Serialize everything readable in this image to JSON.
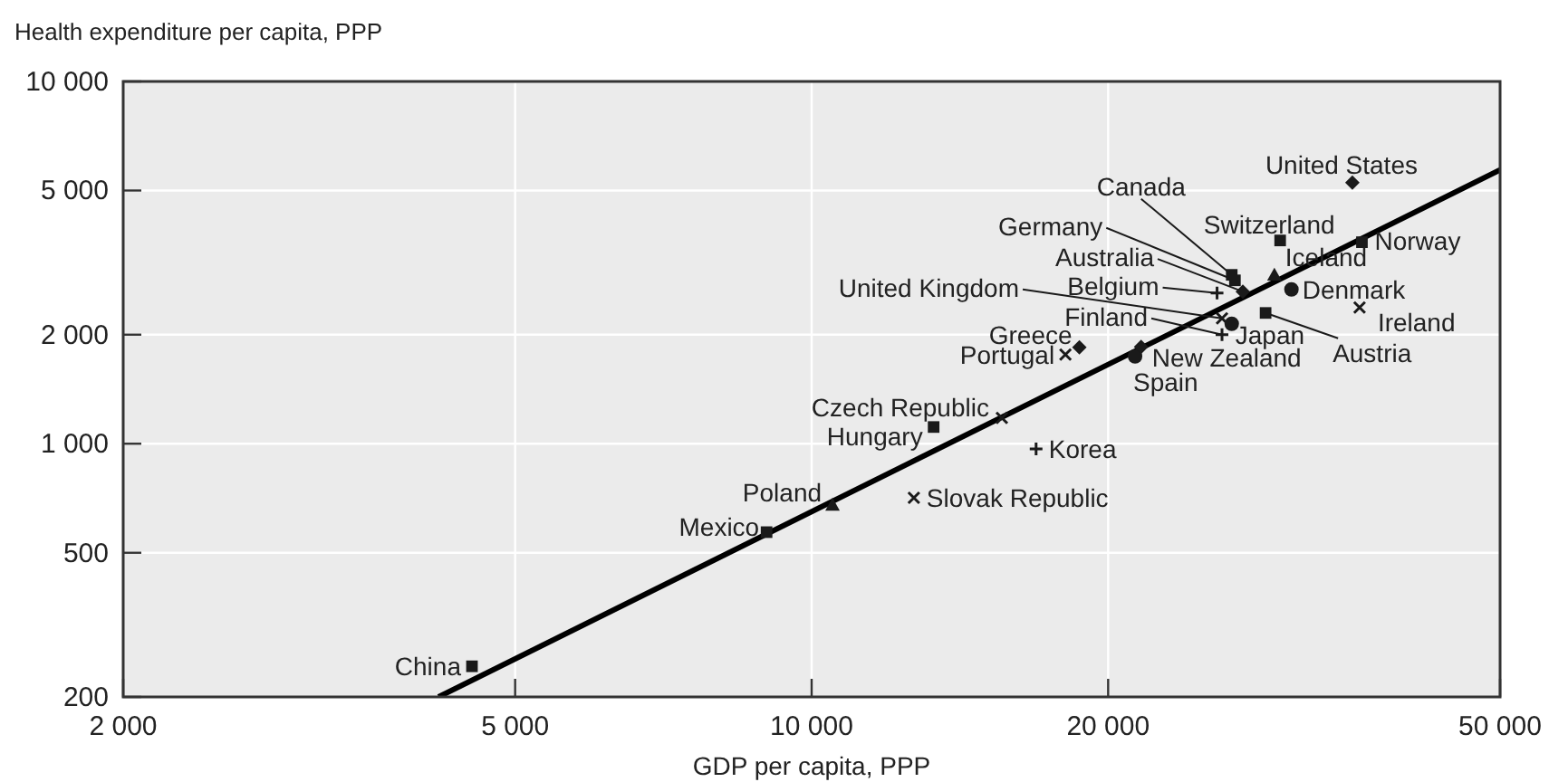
{
  "chart_data": {
    "type": "scatter",
    "ylabel": "Health expenditure per capita, PPP",
    "xlabel": "GDP per capita, PPP",
    "log": "xy",
    "grid": true,
    "xlim": [
      2000,
      50000
    ],
    "xticks": [
      {
        "value": 2000,
        "label": "2 000"
      },
      {
        "value": 5000,
        "label": "5 000"
      },
      {
        "value": 10000,
        "label": "10 000"
      },
      {
        "value": 20000,
        "label": "20 000"
      },
      {
        "value": 50000,
        "label": "50 000"
      }
    ],
    "ylim": [
      200,
      10000
    ],
    "yticks": [
      200,
      500,
      {
        "value": 1000,
        "label": "1 000"
      },
      {
        "value": 2000,
        "label": "2 000"
      },
      {
        "value": 5000,
        "label": "5 000"
      },
      {
        "value": 10000,
        "label": "10 000"
      }
    ],
    "series": [
      {
        "name": "China",
        "color": "#1a1a1a",
        "marker": "square",
        "x": [
          4520
        ],
        "values": [
          243
        ]
      },
      {
        "name": "Mexico",
        "color": "#1a1a1a",
        "marker": "square",
        "x": [
          9000
        ],
        "values": [
          570
        ]
      },
      {
        "name": "Poland",
        "color": "#1a1a1a",
        "marker": "triangle",
        "x": [
          10500
        ],
        "values": [
          678
        ]
      },
      {
        "name": "Hungary",
        "color": "#1a1a1a",
        "marker": "square",
        "x": [
          13300
        ],
        "values": [
          1112
        ]
      },
      {
        "name": "Czech Republic",
        "color": "#1a1a1a",
        "marker": "cross",
        "x": [
          15600
        ],
        "values": [
          1178
        ]
      },
      {
        "name": "Slovak Republic",
        "color": "#1a1a1a",
        "marker": "cross",
        "x": [
          12700
        ],
        "values": [
          709
        ]
      },
      {
        "name": "Korea",
        "color": "#1a1a1a",
        "marker": "plus",
        "x": [
          16900
        ],
        "values": [
          968
        ]
      },
      {
        "name": "Portugal",
        "color": "#1a1a1a",
        "marker": "cross",
        "x": [
          18100
        ],
        "values": [
          1762
        ]
      },
      {
        "name": "Greece",
        "color": "#1a1a1a",
        "marker": "diamond",
        "x": [
          18700
        ],
        "values": [
          1846
        ]
      },
      {
        "name": "Spain",
        "color": "#1a1a1a",
        "marker": "circle",
        "x": [
          21300
        ],
        "values": [
          1742
        ]
      },
      {
        "name": "New Zealand",
        "color": "#1a1a1a",
        "marker": "diamond",
        "x": [
          21600
        ],
        "values": [
          1850
        ]
      },
      {
        "name": "Finland",
        "color": "#1a1a1a",
        "marker": "plus",
        "x": [
          26100
        ],
        "values": [
          2000
        ]
      },
      {
        "name": "United Kingdom",
        "color": "#1a1a1a",
        "marker": "cross",
        "x": [
          26100
        ],
        "values": [
          2218
        ]
      },
      {
        "name": "Japan",
        "color": "#1a1a1a",
        "marker": "circle",
        "x": [
          26700
        ],
        "values": [
          2143
        ]
      },
      {
        "name": "Belgium",
        "color": "#1a1a1a",
        "marker": "plus",
        "x": [
          25800
        ],
        "values": [
          2607
        ]
      },
      {
        "name": "Australia",
        "color": "#1a1a1a",
        "marker": "diamond",
        "x": [
          27400
        ],
        "values": [
          2630
        ]
      },
      {
        "name": "Germany",
        "color": "#1a1a1a",
        "marker": "square",
        "x": [
          26900
        ],
        "values": [
          2825
        ]
      },
      {
        "name": "Canada",
        "color": "#1a1a1a",
        "marker": "square",
        "x": [
          26700
        ],
        "values": [
          2925
        ]
      },
      {
        "name": "Iceland",
        "color": "#1a1a1a",
        "marker": "triangle",
        "x": [
          29500
        ],
        "values": [
          2925
        ]
      },
      {
        "name": "Switzerland",
        "color": "#1a1a1a",
        "marker": "square",
        "x": [
          29900
        ],
        "values": [
          3640
        ]
      },
      {
        "name": "Denmark",
        "color": "#1a1a1a",
        "marker": "circle",
        "x": [
          30700
        ],
        "values": [
          2667
        ]
      },
      {
        "name": "Austria",
        "color": "#1a1a1a",
        "marker": "square",
        "x": [
          28900
        ],
        "values": [
          2296
        ]
      },
      {
        "name": "Norway",
        "color": "#1a1a1a",
        "marker": "square",
        "x": [
          36200
        ],
        "values": [
          3600
        ]
      },
      {
        "name": "United States",
        "color": "#1a1a1a",
        "marker": "diamond",
        "x": [
          35400
        ],
        "values": [
          5260
        ]
      },
      {
        "name": "Ireland",
        "color": "#1a1a1a",
        "marker": "cross",
        "x": [
          36000
        ],
        "values": [
          2377
        ]
      },
      {
        "type": "line",
        "color": "#000000",
        "x": [
          4180,
          50000
        ],
        "values": [
          200,
          5700
        ]
      }
    ]
  }
}
